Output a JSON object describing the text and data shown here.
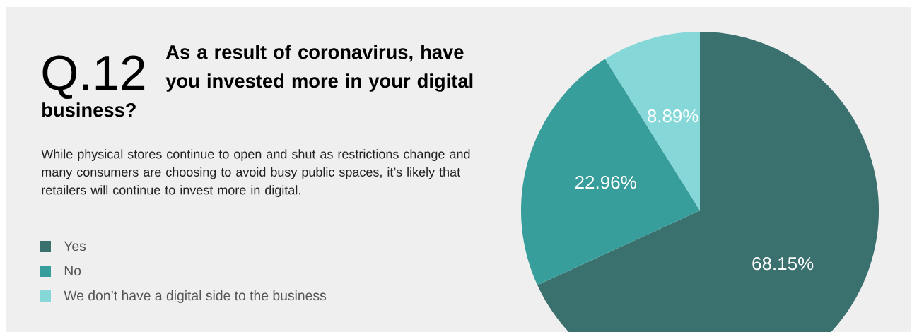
{
  "chart_data": {
    "type": "pie",
    "title": "As a result of coronavirus, have you invested more in your digital business?",
    "subtitle": "While physical stores continue to open and shut as restrictions change and many consumers are choosing to avoid busy public spaces, it’s likely that retailers will continue to invest more in digital.",
    "annotations": [
      "Q.12"
    ],
    "categories": [
      "Yes",
      "No",
      "We don’t have a digital side to the business"
    ],
    "values": [
      68.15,
      22.96,
      8.89
    ],
    "value_labels": [
      "68.15%",
      "22.96%",
      "8.89%"
    ],
    "colors": [
      "#3a706e",
      "#389e9b",
      "#86d8d8"
    ],
    "legend": "left"
  }
}
